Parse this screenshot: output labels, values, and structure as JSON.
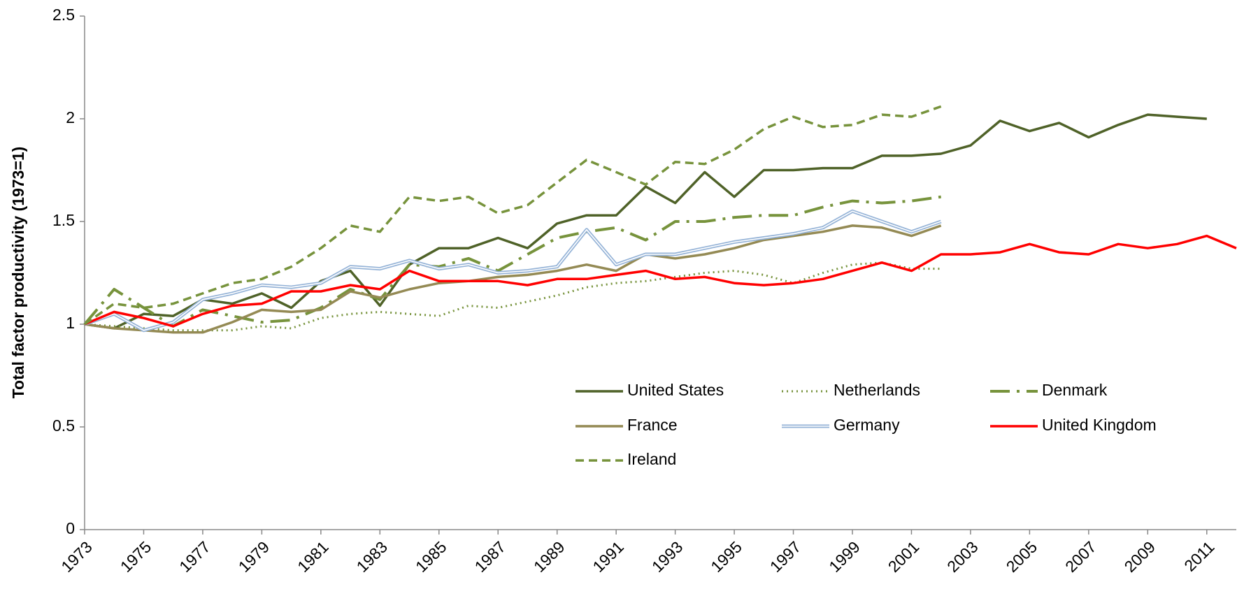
{
  "chart_data": {
    "type": "line",
    "y_label": "Total factor productivity (1973=1)",
    "x": [
      1973,
      1974,
      1975,
      1976,
      1977,
      1978,
      1979,
      1980,
      1981,
      1982,
      1983,
      1984,
      1985,
      1986,
      1987,
      1988,
      1989,
      1990,
      1991,
      1992,
      1993,
      1994,
      1995,
      1996,
      1997,
      1998,
      1999,
      2000,
      2001,
      2002,
      2003,
      2004,
      2005,
      2006,
      2007,
      2008,
      2009,
      2010,
      2011,
      2012
    ],
    "xlim": [
      1973,
      2012
    ],
    "xticks": [
      1973,
      1975,
      1977,
      1979,
      1981,
      1983,
      1985,
      1987,
      1989,
      1991,
      1993,
      1995,
      1997,
      1999,
      2001,
      2003,
      2005,
      2007,
      2009,
      2011
    ],
    "ylim": [
      0,
      2.5
    ],
    "yticks": [
      0,
      0.5,
      1,
      1.5,
      2,
      2.5
    ],
    "series": [
      {
        "name": "United States",
        "color": "#4f6228",
        "style": "solid",
        "values": [
          1.0,
          0.98,
          1.05,
          1.04,
          1.12,
          1.1,
          1.15,
          1.08,
          1.21,
          1.26,
          1.09,
          1.29,
          1.37,
          1.37,
          1.42,
          1.37,
          1.49,
          1.53,
          1.53,
          1.67,
          1.59,
          1.74,
          1.62,
          1.75,
          1.75,
          1.76,
          1.76,
          1.82,
          1.82,
          1.83,
          1.87,
          1.99,
          1.94,
          1.98,
          1.91,
          1.97,
          2.02,
          2.01,
          2.0,
          null
        ]
      },
      {
        "name": "Netherlands",
        "color": "#77933c",
        "style": "dotted",
        "values": [
          1.0,
          0.99,
          0.98,
          0.97,
          0.97,
          0.97,
          0.99,
          0.98,
          1.03,
          1.05,
          1.06,
          1.05,
          1.04,
          1.09,
          1.08,
          1.11,
          1.14,
          1.18,
          1.2,
          1.21,
          1.23,
          1.25,
          1.26,
          1.24,
          1.2,
          1.25,
          1.29,
          1.3,
          1.27,
          1.27,
          null,
          null,
          null,
          null,
          null,
          null,
          null,
          null,
          null,
          null
        ]
      },
      {
        "name": "Denmark",
        "color": "#77933c",
        "style": "dashdot",
        "values": [
          1.0,
          1.17,
          1.08,
          0.99,
          1.07,
          1.04,
          1.01,
          1.02,
          1.08,
          1.17,
          1.12,
          1.29,
          1.28,
          1.32,
          1.26,
          1.34,
          1.42,
          1.45,
          1.47,
          1.41,
          1.5,
          1.5,
          1.52,
          1.53,
          1.53,
          1.57,
          1.6,
          1.59,
          1.6,
          1.62,
          null,
          null,
          null,
          null,
          null,
          null,
          null,
          null,
          null,
          null
        ]
      },
      {
        "name": "France",
        "color": "#948a54",
        "style": "solid",
        "values": [
          1.0,
          0.98,
          0.97,
          0.96,
          0.96,
          1.01,
          1.07,
          1.06,
          1.07,
          1.16,
          1.13,
          1.17,
          1.2,
          1.21,
          1.23,
          1.24,
          1.26,
          1.29,
          1.26,
          1.34,
          1.32,
          1.34,
          1.37,
          1.41,
          1.43,
          1.45,
          1.48,
          1.47,
          1.43,
          1.48,
          null,
          null,
          null,
          null,
          null,
          null,
          null,
          null,
          null,
          null
        ]
      },
      {
        "name": "Germany",
        "color": "#95b3d7",
        "style": "double",
        "values": [
          1.0,
          1.05,
          0.97,
          1.01,
          1.12,
          1.15,
          1.19,
          1.18,
          1.2,
          1.28,
          1.27,
          1.31,
          1.27,
          1.29,
          1.25,
          1.26,
          1.28,
          1.46,
          1.29,
          1.34,
          1.34,
          1.37,
          1.4,
          1.42,
          1.44,
          1.47,
          1.55,
          1.5,
          1.45,
          1.5,
          null,
          null,
          null,
          null,
          null,
          null,
          null,
          null,
          null,
          null
        ]
      },
      {
        "name": "United Kingdom",
        "color": "#ff0000",
        "style": "solid",
        "values": [
          1.0,
          1.06,
          1.03,
          0.99,
          1.05,
          1.09,
          1.1,
          1.16,
          1.16,
          1.19,
          1.17,
          1.26,
          1.21,
          1.21,
          1.21,
          1.19,
          1.22,
          1.22,
          1.24,
          1.26,
          1.22,
          1.23,
          1.2,
          1.19,
          1.2,
          1.22,
          1.26,
          1.3,
          1.26,
          1.34,
          1.34,
          1.35,
          1.39,
          1.35,
          1.34,
          1.39,
          1.37,
          1.39,
          1.43,
          1.37
        ]
      },
      {
        "name": "Ireland",
        "color": "#77933c",
        "style": "dashed",
        "values": [
          1.0,
          1.1,
          1.08,
          1.1,
          1.15,
          1.2,
          1.22,
          1.28,
          1.37,
          1.48,
          1.45,
          1.62,
          1.6,
          1.62,
          1.54,
          1.58,
          1.69,
          1.8,
          1.74,
          1.68,
          1.79,
          1.78,
          1.85,
          1.95,
          2.01,
          1.96,
          1.97,
          2.02,
          2.01,
          2.06,
          null,
          null,
          null,
          null,
          null,
          null,
          null,
          null,
          null,
          null
        ]
      }
    ]
  }
}
